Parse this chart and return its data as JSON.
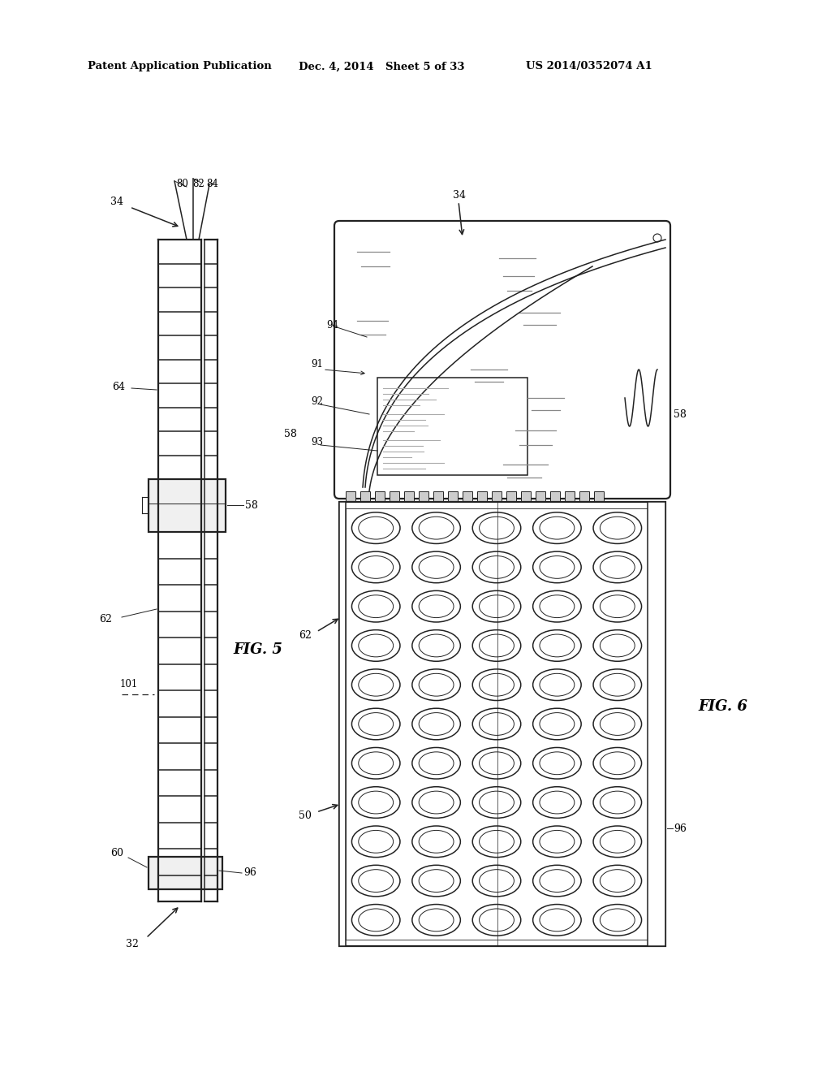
{
  "bg_color": "#ffffff",
  "header_text": "Patent Application Publication",
  "header_date": "Dec. 4, 2014",
  "header_sheet": "Sheet 5 of 33",
  "header_patent": "US 2014/0352074 A1",
  "fig5_label": "FIG. 5",
  "fig6_label": "FIG. 6",
  "labels": {
    "34_left": "34",
    "80": "80",
    "82": "82",
    "84": "84",
    "64": "64",
    "58_left": "58",
    "62_left": "62",
    "101": "101",
    "60": "60",
    "96_left": "96",
    "32": "32",
    "34_right": "34",
    "91": "91",
    "94": "94",
    "92": "92",
    "93": "93",
    "58_right": "58",
    "62_right": "62",
    "50": "50",
    "96_right": "96"
  }
}
